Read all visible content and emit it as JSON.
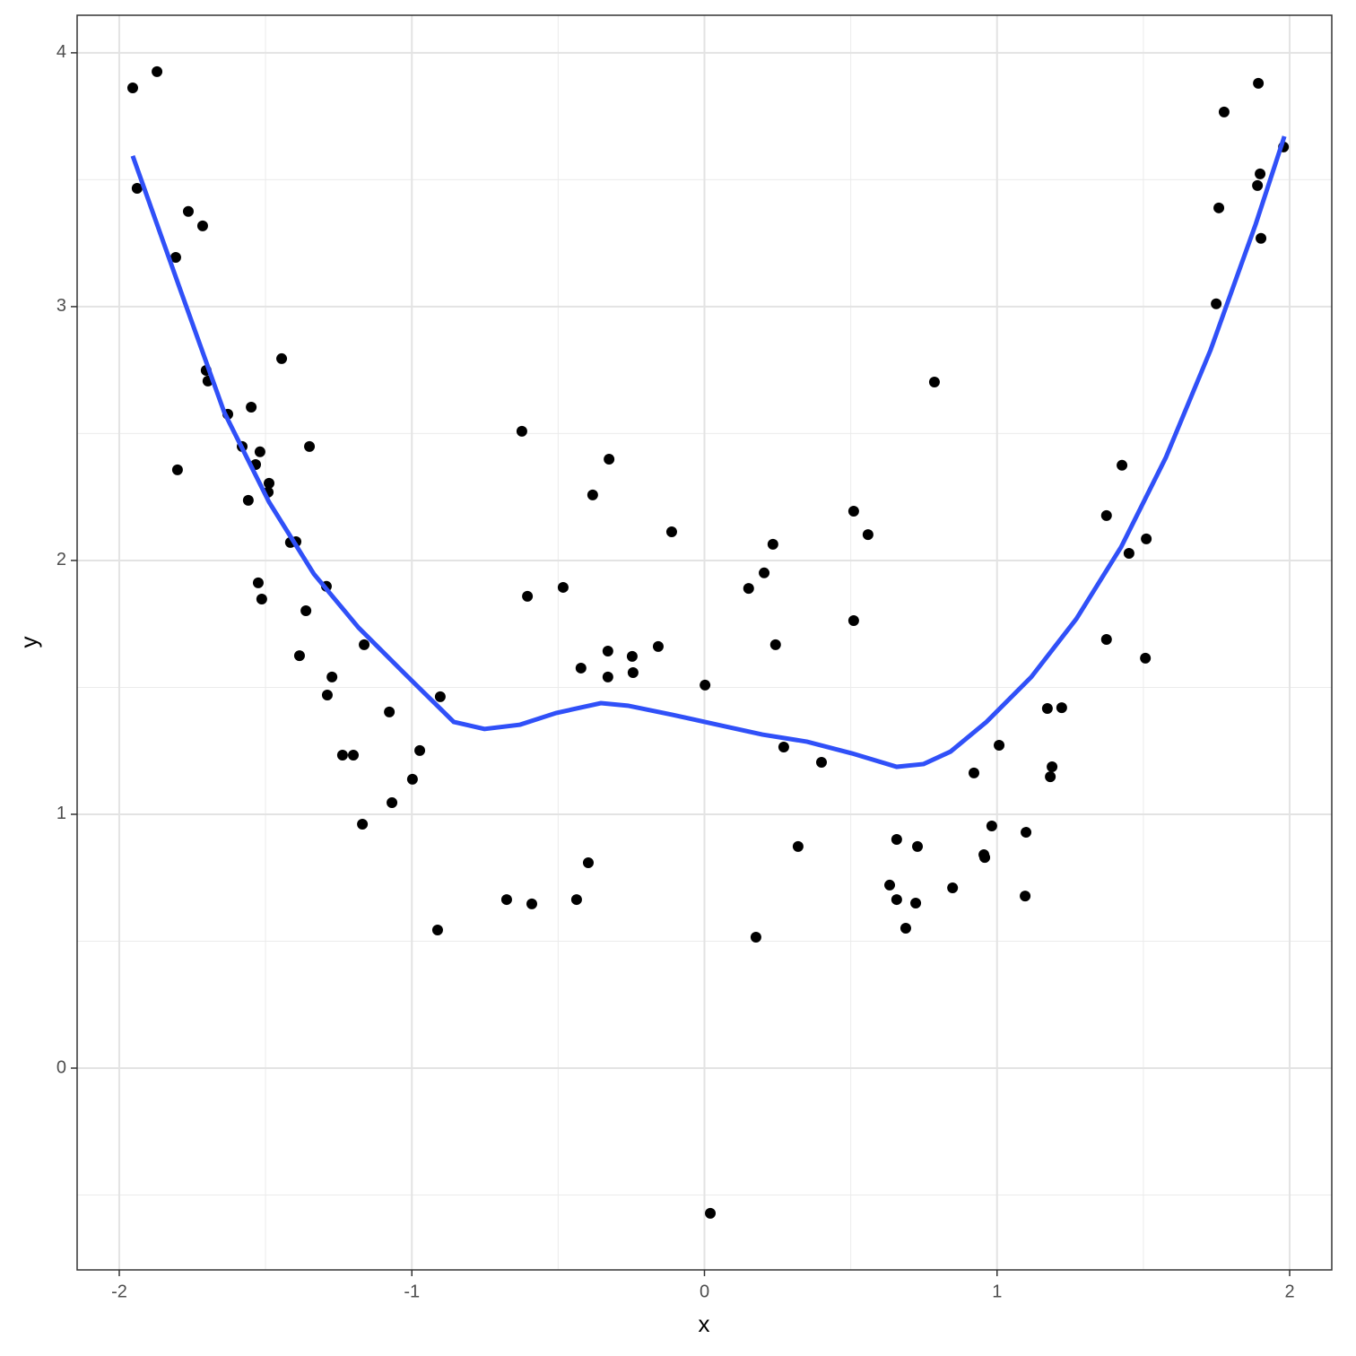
{
  "chart_data": {
    "type": "scatter",
    "x_label": "x",
    "y_label": "y",
    "xlim": [
      -2.144,
      2.144
    ],
    "ylim": [
      -0.795,
      4.148
    ],
    "xticks": [
      -2,
      -1,
      0,
      1,
      2
    ],
    "yticks": [
      0,
      1,
      2,
      3,
      4
    ],
    "x_minor_breaks": [
      -1.5,
      -0.5,
      0.5,
      1.5
    ],
    "y_minor_breaks": [
      -0.5,
      0.5,
      1.5,
      2.5,
      3.5
    ],
    "grid": true,
    "point_color": "#000000",
    "points": {
      "x": [
        -1.954,
        -1.939,
        -1.871,
        -1.807,
        -1.801,
        -1.764,
        -1.715,
        -1.703,
        -1.697,
        -1.629,
        -1.58,
        -1.549,
        -1.559,
        -1.534,
        -1.519,
        -1.488,
        -1.491,
        -1.525,
        -1.513,
        -1.445,
        -1.415,
        -1.396,
        -1.384,
        -1.362,
        -1.35,
        -1.292,
        -1.289,
        -1.273,
        -1.237,
        -1.2,
        -1.163,
        -1.169,
        -1.077,
        -1.068,
        -0.998,
        -0.973,
        -0.912,
        -0.903,
        -0.676,
        -0.624,
        -0.605,
        -0.59,
        -0.483,
        -0.437,
        -0.422,
        -0.397,
        -0.382,
        -0.326,
        -0.33,
        -0.33,
        -0.247,
        -0.244,
        -0.158,
        -0.112,
        0.002,
        0.02,
        0.151,
        0.176,
        0.204,
        0.234,
        0.243,
        0.271,
        0.32,
        0.4,
        0.51,
        0.51,
        0.559,
        0.633,
        0.657,
        0.657,
        0.688,
        0.722,
        0.728,
        0.786,
        0.848,
        0.921,
        0.955,
        0.958,
        0.982,
        1.007,
        1.096,
        1.099,
        1.172,
        1.182,
        1.188,
        1.221,
        1.374,
        1.374,
        1.427,
        1.451,
        1.507,
        1.51,
        1.749,
        1.758,
        1.776,
        1.89,
        1.893,
        1.899,
        1.902,
        1.979
      ],
      "y": [
        3.862,
        3.466,
        3.926,
        3.194,
        2.357,
        3.375,
        3.318,
        2.749,
        2.707,
        2.576,
        2.449,
        2.604,
        2.237,
        2.378,
        2.428,
        2.304,
        2.269,
        1.912,
        1.848,
        2.795,
        2.071,
        2.074,
        1.625,
        1.802,
        2.449,
        1.898,
        1.47,
        1.541,
        1.233,
        1.233,
        1.668,
        0.961,
        1.403,
        1.046,
        1.138,
        1.251,
        0.544,
        1.463,
        0.664,
        2.509,
        1.859,
        0.647,
        1.894,
        0.664,
        1.576,
        0.809,
        2.258,
        2.399,
        1.643,
        1.541,
        1.622,
        1.558,
        1.661,
        2.113,
        1.509,
        -0.572,
        1.89,
        0.516,
        1.951,
        2.064,
        1.668,
        1.265,
        0.873,
        1.205,
        2.194,
        1.763,
        2.102,
        0.721,
        0.901,
        0.664,
        0.551,
        0.65,
        0.873,
        2.703,
        0.71,
        1.163,
        0.841,
        0.83,
        0.954,
        1.272,
        0.678,
        0.929,
        1.417,
        1.148,
        1.187,
        1.42,
        2.177,
        1.689,
        2.375,
        2.028,
        1.615,
        2.085,
        3.011,
        3.389,
        3.767,
        3.477,
        3.88,
        3.523,
        3.269,
        3.629
      ]
    },
    "smooth": {
      "color": "#3050f8",
      "x": [
        -1.954,
        -1.795,
        -1.641,
        -1.488,
        -1.335,
        -1.182,
        -1.028,
        -0.857,
        -0.752,
        -0.63,
        -0.507,
        -0.354,
        -0.262,
        -0.109,
        0.044,
        0.198,
        0.351,
        0.504,
        0.657,
        0.749,
        0.841,
        0.964,
        1.117,
        1.271,
        1.424,
        1.577,
        1.73,
        1.884,
        1.982
      ],
      "y": [
        3.594,
        3.078,
        2.583,
        2.23,
        1.947,
        1.735,
        1.558,
        1.364,
        1.336,
        1.353,
        1.399,
        1.438,
        1.428,
        1.392,
        1.353,
        1.314,
        1.286,
        1.24,
        1.187,
        1.198,
        1.247,
        1.364,
        1.541,
        1.77,
        2.053,
        2.406,
        2.83,
        3.325,
        3.671
      ]
    }
  }
}
